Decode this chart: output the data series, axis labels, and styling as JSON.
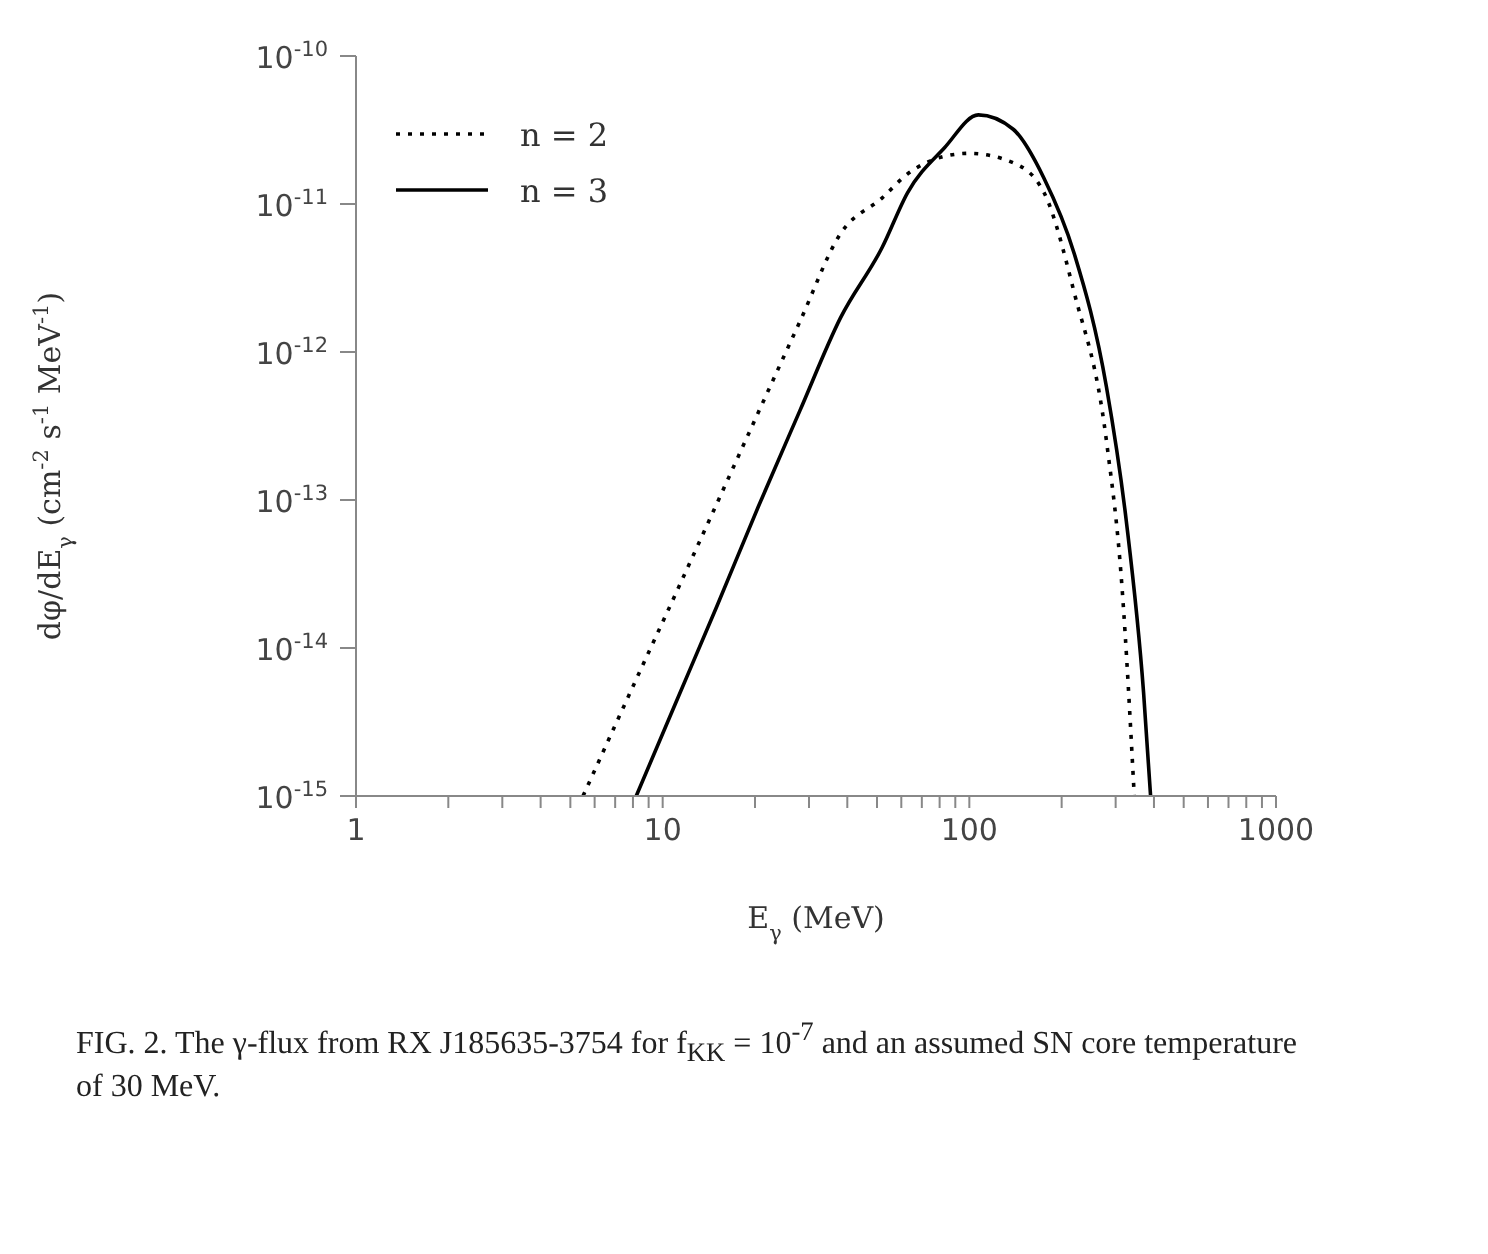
{
  "chart_data": {
    "type": "line",
    "xlabel": "E$_{γ}$ (MeV)",
    "ylabel": "dφ/dE$_{γ}$ (cm$^{-2}$ s$^{-1}$ MeV$^{-1}$)",
    "annotations": [
      "FIG. 2. The γ-flux from RX J185635-3754 for f$_{KK}$ = 10$^{-7}$ and an assumed SN core temperature of 30 MeV."
    ],
    "log": "xy",
    "grid": false,
    "legend": "top left",
    "marker": "none",
    "xlim": [
      1,
      1000
    ],
    "xticks": [
      1,
      {
        "value": 2,
        "label": null
      },
      {
        "value": 3,
        "label": null
      },
      {
        "value": 4,
        "label": null
      },
      {
        "value": 5,
        "label": null
      },
      {
        "value": 6,
        "label": null
      },
      {
        "value": 7,
        "label": null
      },
      {
        "value": 8,
        "label": null
      },
      {
        "value": 9,
        "label": null
      },
      10,
      {
        "value": 20,
        "label": null
      },
      {
        "value": 30,
        "label": null
      },
      {
        "value": 40,
        "label": null
      },
      {
        "value": 50,
        "label": null
      },
      {
        "value": 60,
        "label": null
      },
      {
        "value": 70,
        "label": null
      },
      {
        "value": 80,
        "label": null
      },
      {
        "value": 90,
        "label": null
      },
      100,
      {
        "value": 200,
        "label": null
      },
      {
        "value": 300,
        "label": null
      },
      {
        "value": 400,
        "label": null
      },
      {
        "value": 500,
        "label": null
      },
      {
        "value": 600,
        "label": null
      },
      {
        "value": 700,
        "label": null
      },
      {
        "value": 800,
        "label": null
      },
      {
        "value": 900,
        "label": null
      },
      1000
    ],
    "ylim": [
      1e-15,
      1e-10
    ],
    "yticks": [
      {
        "value": 1e-15,
        "label": "10$^{-15}$"
      },
      {
        "value": 1e-14,
        "label": "10$^{-14}$"
      },
      {
        "value": 1e-13,
        "label": "10$^{-13}$"
      },
      {
        "value": 1e-12,
        "label": "10$^{-12}$"
      },
      {
        "value": 1e-11,
        "label": "10$^{-11}$"
      },
      {
        "value": 1e-10,
        "label": "10$^{-10}$"
      }
    ],
    "series": [
      {
        "name": "n = 2",
        "color": "#000000",
        "line_style": "dotted",
        "x": [
          5.5,
          8,
          11,
          15,
          20.5,
          28,
          38,
          52,
          63,
          83,
          100,
          139,
          175,
          220,
          280,
          315,
          345
        ],
        "values": [
          1e-15,
          5.5e-15,
          2.3e-14,
          9.4e-14,
          3.9e-13,
          1.6e-12,
          6.3e-12,
          1.1e-11,
          1.6e-11,
          2.1e-11,
          2.2e-11,
          1.9e-11,
          1.2e-11,
          2.5e-12,
          2.5e-13,
          2.5e-14,
          1e-15
        ]
      },
      {
        "name": "n = 3",
        "color": "#000000",
        "line_style": "solid",
        "x": [
          8.2,
          11,
          15,
          20.5,
          28,
          38,
          52,
          63,
          83,
          107,
          139,
          175,
          220,
          280,
          325,
          370,
          390
        ],
        "values": [
          1e-15,
          4.2e-15,
          1.9e-14,
          9e-14,
          4e-13,
          1.7e-12,
          5.1e-12,
          1.2e-11,
          2.4e-11,
          4e-11,
          3.2e-11,
          1.5e-11,
          4.6e-12,
          5.8e-13,
          7.2e-14,
          5e-15,
          1e-15
        ]
      }
    ]
  }
}
